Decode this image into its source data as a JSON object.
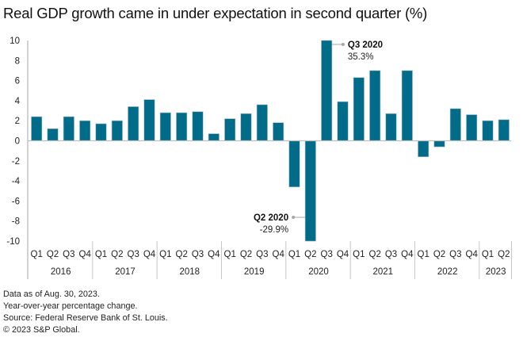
{
  "chart_data": {
    "type": "bar",
    "title": "Real GDP growth came in under expectation in second quarter (%)",
    "xlabel": "",
    "ylabel": "",
    "ylim": [
      -10,
      10
    ],
    "yticks": [
      10,
      8,
      6,
      4,
      2,
      0,
      -2,
      -4,
      -6,
      -8,
      -10
    ],
    "grid": false,
    "bar_color": "#006c89",
    "years": [
      {
        "label": "2016",
        "quarters": 4
      },
      {
        "label": "2017",
        "quarters": 4
      },
      {
        "label": "2018",
        "quarters": 4
      },
      {
        "label": "2019",
        "quarters": 4
      },
      {
        "label": "2020",
        "quarters": 4
      },
      {
        "label": "2021",
        "quarters": 4
      },
      {
        "label": "2022",
        "quarters": 4
      },
      {
        "label": "2023",
        "quarters": 2
      }
    ],
    "categories": [
      "Q1",
      "Q2",
      "Q3",
      "Q4",
      "Q1",
      "Q2",
      "Q3",
      "Q4",
      "Q1",
      "Q2",
      "Q3",
      "Q4",
      "Q1",
      "Q2",
      "Q3",
      "Q4",
      "Q1",
      "Q2",
      "Q3",
      "Q4",
      "Q1",
      "Q2",
      "Q3",
      "Q4",
      "Q1",
      "Q2",
      "Q3",
      "Q4",
      "Q1",
      "Q2"
    ],
    "values": [
      2.4,
      1.2,
      2.4,
      2.0,
      1.7,
      2.0,
      3.4,
      4.1,
      2.8,
      2.8,
      2.9,
      0.7,
      2.2,
      2.7,
      3.6,
      1.8,
      -4.6,
      -29.9,
      35.3,
      3.9,
      6.3,
      7.0,
      2.7,
      7.0,
      -1.6,
      -0.6,
      3.2,
      2.6,
      2.0,
      2.1
    ],
    "annotations": [
      {
        "index": 18,
        "title": "Q3 2020",
        "value": "35.3%"
      },
      {
        "index": 17,
        "title": "Q2 2020",
        "value": "-29.9%"
      }
    ]
  },
  "footer": {
    "lines": [
      "Data as of Aug. 30, 2023.",
      "Year-over-year percentage change.",
      "Source: Federal Reserve Bank of St. Louis.",
      "© 2023 S&P Global."
    ]
  }
}
